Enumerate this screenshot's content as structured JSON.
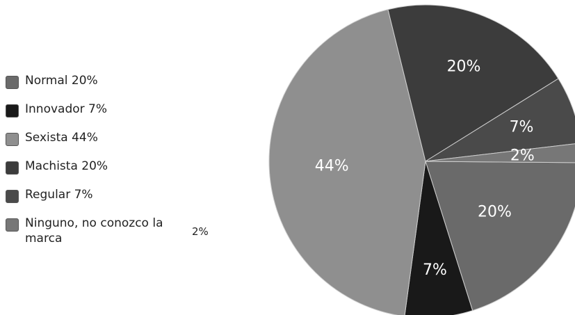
{
  "chart_data": {
    "type": "pie",
    "title": "",
    "legend_position": "left",
    "slices": [
      {
        "legend_name": "Normal",
        "legend_pct": "20%",
        "value": 20,
        "label": "20%",
        "color": "#6a6a6a"
      },
      {
        "legend_name": "Innovador",
        "legend_pct": "7%",
        "value": 7,
        "label": "7%",
        "color": "#191919"
      },
      {
        "legend_name": "Sexista",
        "legend_pct": "44%",
        "value": 44,
        "label": "44%",
        "color": "#8f8f8f"
      },
      {
        "legend_name": "Machista",
        "legend_pct": "20%",
        "value": 20,
        "label": "20%",
        "color": "#3c3c3c"
      },
      {
        "legend_name": "Regular",
        "legend_pct": "7%",
        "value": 7,
        "label": "7%",
        "color": "#4a4a4a"
      },
      {
        "legend_name": "Ninguno, no conozco la marca",
        "legend_pct": "2%",
        "value": 2,
        "label": "2%",
        "color": "#777777"
      }
    ]
  }
}
